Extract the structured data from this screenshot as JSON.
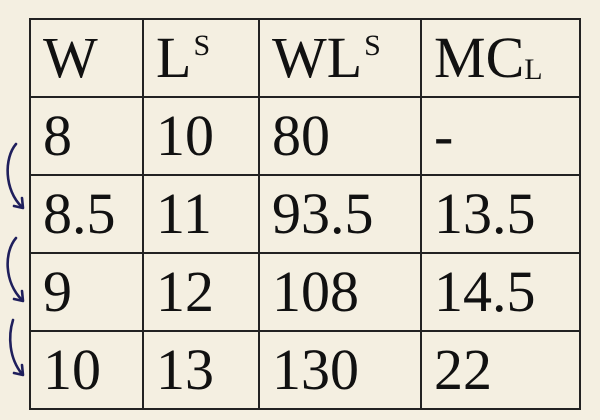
{
  "table": {
    "headers": [
      {
        "base": "W",
        "sup": "",
        "sub": ""
      },
      {
        "base": "L",
        "sup": "S",
        "sub": ""
      },
      {
        "base": "WL",
        "sup": "S",
        "sub": ""
      },
      {
        "base": "MC",
        "sup": "",
        "sub": "L"
      }
    ],
    "rows": [
      [
        "8",
        "10",
        "80",
        "-"
      ],
      [
        "8.5",
        "11",
        "93.5",
        "13.5"
      ],
      [
        "9",
        "12",
        "108",
        "14.5"
      ],
      [
        "10",
        "13",
        "130",
        "22"
      ]
    ]
  },
  "colors": {
    "background": "#f4efe1",
    "arrow": "#1f1f5c"
  }
}
